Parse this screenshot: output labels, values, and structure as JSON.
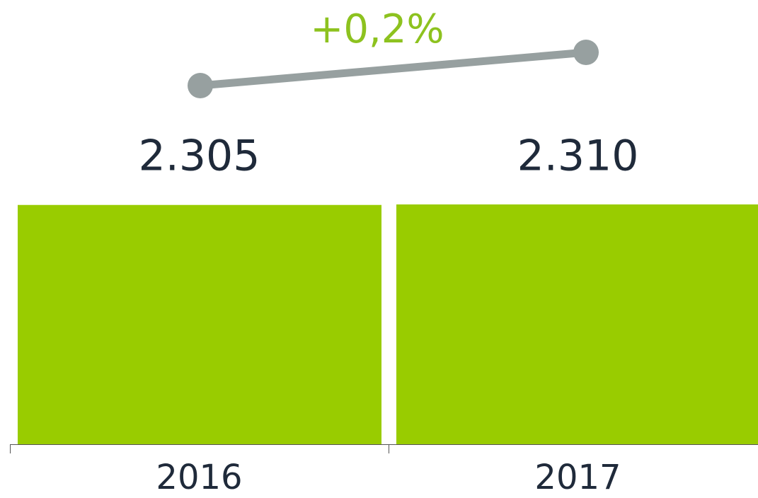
{
  "chart_data": {
    "type": "bar",
    "annotation": "+0,2%",
    "categories": [
      "2016",
      "2017"
    ],
    "values": [
      2305,
      2310
    ],
    "value_labels": [
      "2.305",
      "2.310"
    ],
    "color": "#99cc00",
    "ylim": [
      0,
      2310
    ]
  }
}
